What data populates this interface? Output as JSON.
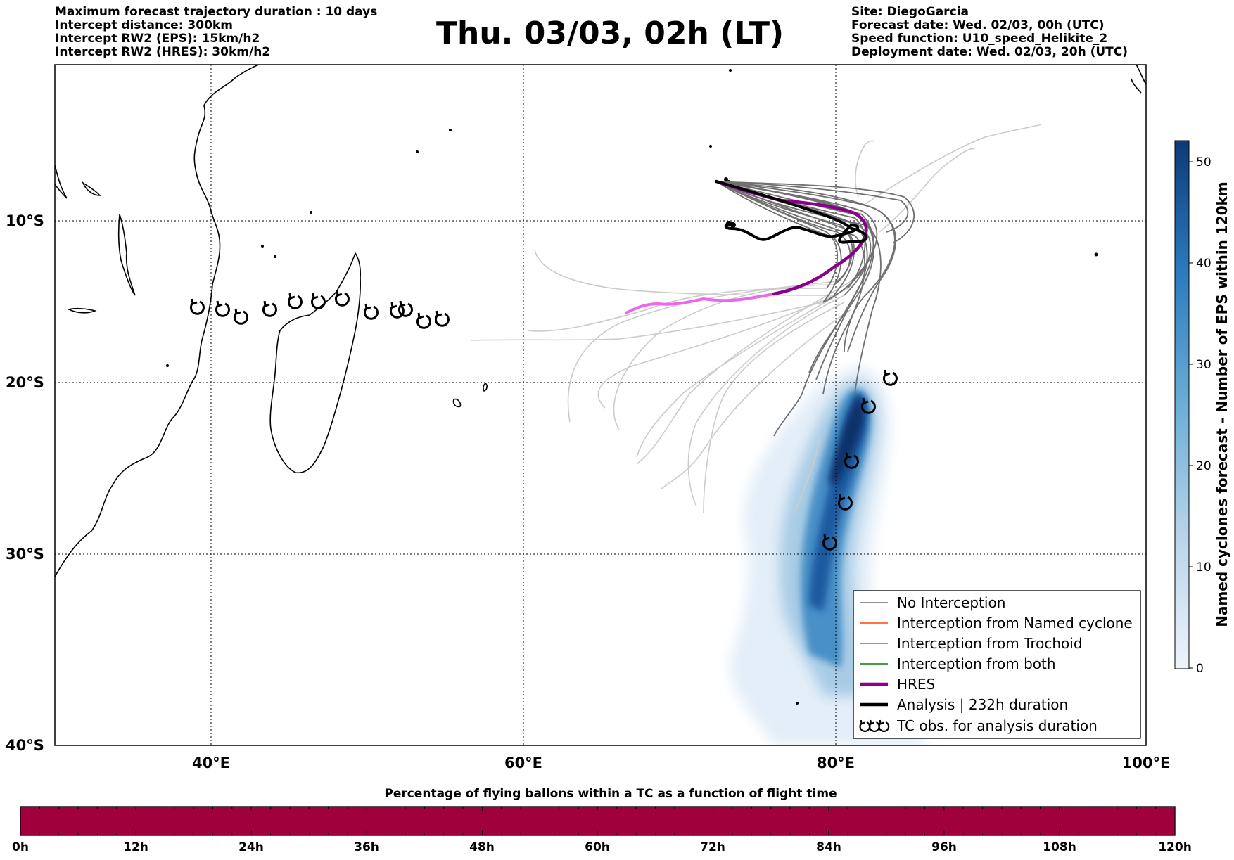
{
  "header": {
    "left": [
      "Maximum forecast trajectory duration : 10 days",
      "Intercept distance: 300km",
      "Intercept RW2 (EPS):  15km/h2",
      "Intercept RW2 (HRES): 30km/h2"
    ],
    "title": "Thu. 03/03, 02h (LT)",
    "right": [
      "Site: DiegoGarcia",
      "Forecast date: Wed. 02/03, 00h (UTC)",
      "Speed function: U10_speed_Helikite_2",
      "Deployment date: Wed. 02/03, 20h (UTC)"
    ]
  },
  "map": {
    "lon_labels": [
      "40°E",
      "60°E",
      "80°E",
      "100°E"
    ],
    "lat_labels": [
      "10°S",
      "20°S",
      "30°S",
      "40°S"
    ],
    "colors": {
      "eps_track": "#6e6e6e",
      "eps_track_faded": "#c8c8c8",
      "hres": "#8b008b",
      "hres_faded": "#ee66ee",
      "analysis": "#000000",
      "named_cyclone": "#ff4500",
      "trochoid": "#808000",
      "both": "#008000",
      "density_max": "#08306b",
      "density_min": "#deebf7"
    }
  },
  "legend": {
    "items": [
      {
        "label": "No Interception",
        "color": "#6e6e6e",
        "kind": "line"
      },
      {
        "label": "Interception from Named cyclone",
        "color": "#ff4500",
        "kind": "line"
      },
      {
        "label": "Interception from Trochoid",
        "color": "#808000",
        "kind": "line"
      },
      {
        "label": "Interception from both",
        "color": "#008000",
        "kind": "line"
      },
      {
        "label": "HRES",
        "color": "#8b008b",
        "kind": "thick"
      },
      {
        "label": "Analysis | 232h duration",
        "color": "#000000",
        "kind": "thick"
      },
      {
        "label": "TC obs. for analysis duration",
        "color": "#000000",
        "kind": "symbol"
      }
    ]
  },
  "colorbar": {
    "title": "Named cyclones forecast - Number of EPS within 120km",
    "ticks": [
      "0",
      "10",
      "20",
      "30",
      "40",
      "50"
    ]
  },
  "timeline": {
    "title": "Percentage of flying ballons within a TC as a function of flight time",
    "fill_color": "#a0003c",
    "fill_fraction": 1.0,
    "labels": [
      "0h",
      "12h",
      "24h",
      "36h",
      "48h",
      "60h",
      "72h",
      "84h",
      "96h",
      "108h",
      "120h"
    ]
  }
}
